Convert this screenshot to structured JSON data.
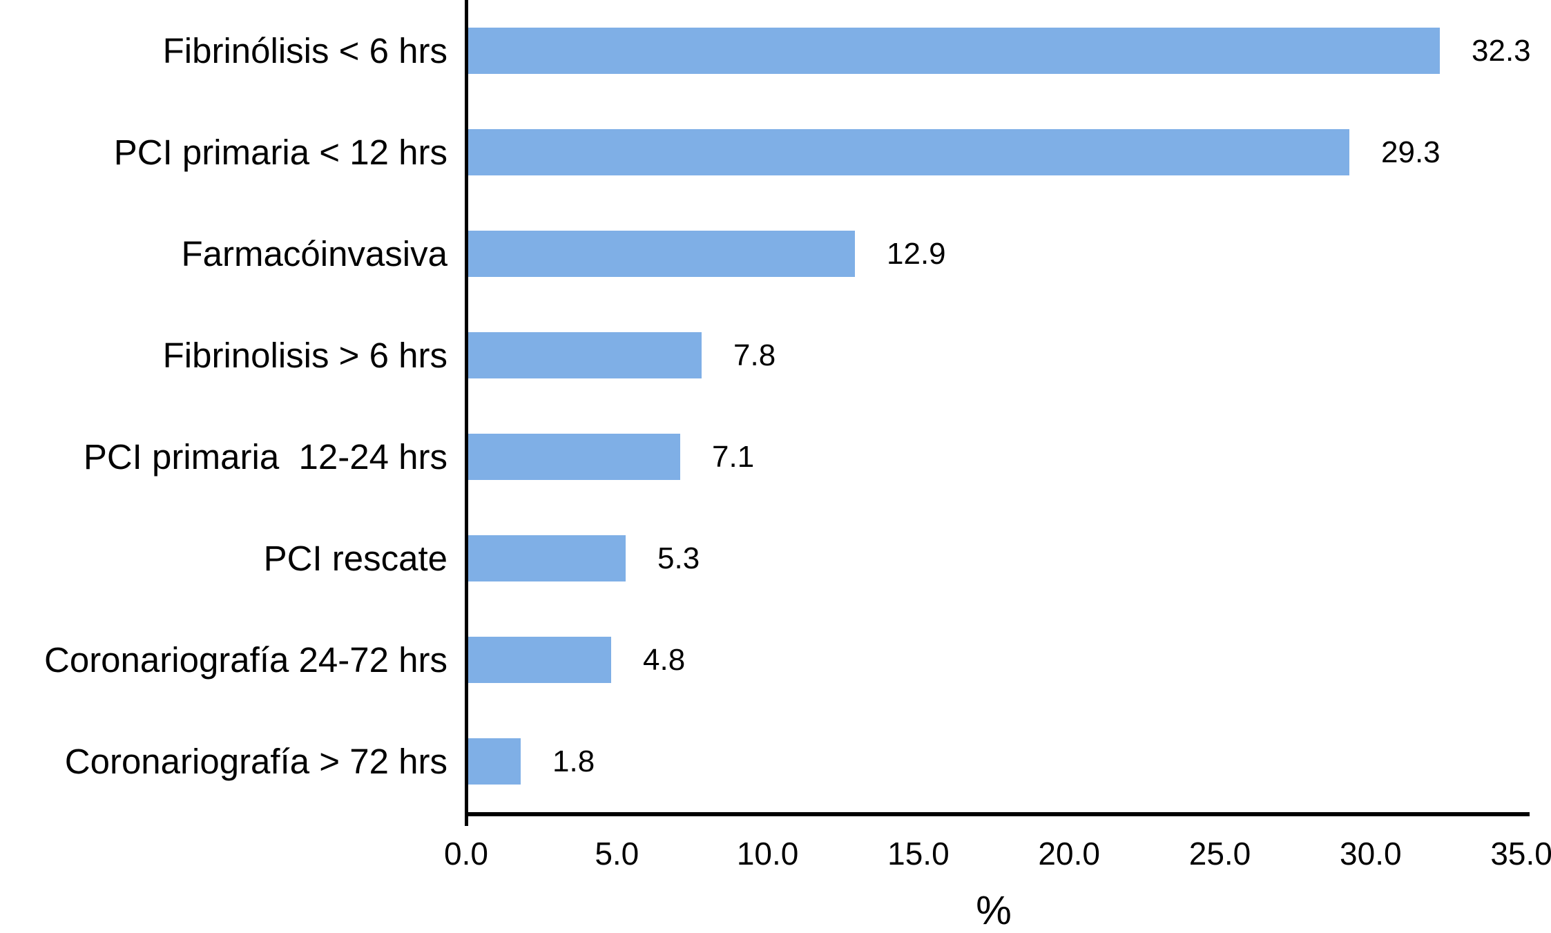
{
  "chart_data": {
    "type": "bar",
    "orientation": "horizontal",
    "title": "",
    "xlabel": "%",
    "categories": [
      "Fibrinólisis < 6 hrs",
      "PCI primaria < 12 hrs",
      "Farmacóinvasiva",
      "Fibrinolisis > 6 hrs",
      "PCI primaria  12-24 hrs",
      "PCI rescate",
      "Coronariografía 24-72 hrs",
      "Coronariografía > 72 hrs"
    ],
    "values": [
      32.3,
      29.3,
      12.9,
      7.8,
      7.1,
      5.3,
      4.8,
      1.8
    ],
    "value_labels": [
      "32.3",
      "29.3",
      "12.9",
      "7.8",
      "7.1",
      "5.3",
      "4.8",
      "1.8"
    ],
    "xlim": [
      0,
      35
    ],
    "xtick_values": [
      0,
      5,
      10,
      15,
      20,
      25,
      30,
      35
    ],
    "xtick_labels": [
      "0.0",
      "5.0",
      "10.0",
      "15.0",
      "20.0",
      "25.0",
      "30.0",
      "35.0"
    ],
    "grid": false,
    "legend": null,
    "bar_color": "#7FAFE6",
    "axis_color": "#000000",
    "text_color": "#000000",
    "background_color": "#FFFFFF"
  }
}
